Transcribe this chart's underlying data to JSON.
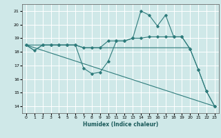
{
  "xlabel": "Humidex (Indice chaleur)",
  "xlim": [
    -0.5,
    23.5
  ],
  "ylim": [
    13.5,
    21.5
  ],
  "yticks": [
    14,
    15,
    16,
    17,
    18,
    19,
    20,
    21
  ],
  "xticks": [
    0,
    1,
    2,
    3,
    4,
    5,
    6,
    7,
    8,
    9,
    10,
    11,
    12,
    13,
    14,
    15,
    16,
    17,
    18,
    19,
    20,
    21,
    22,
    23
  ],
  "bg_color": "#cfe8e8",
  "grid_color": "#ffffff",
  "line_color": "#2e7b7b",
  "lines": [
    {
      "x": [
        0,
        1,
        2,
        3,
        4,
        5,
        6,
        7,
        8,
        9,
        10,
        11,
        12,
        13,
        14,
        15,
        16,
        17,
        18,
        19,
        20
      ],
      "y": [
        18.5,
        18.1,
        18.5,
        18.5,
        18.5,
        18.5,
        18.5,
        18.3,
        18.3,
        18.3,
        18.3,
        18.3,
        18.3,
        18.3,
        18.3,
        18.3,
        18.3,
        18.3,
        18.3,
        18.3,
        18.3
      ],
      "has_markers": false
    },
    {
      "x": [
        0,
        1,
        2,
        3,
        4,
        5,
        6,
        7,
        8,
        9,
        10,
        11,
        12,
        13,
        14,
        15,
        16,
        17,
        18,
        19,
        20,
        21,
        22,
        23
      ],
      "y": [
        18.5,
        18.1,
        18.5,
        18.5,
        18.5,
        18.5,
        18.5,
        16.8,
        16.4,
        16.5,
        17.3,
        18.8,
        18.8,
        19.0,
        19.0,
        19.1,
        19.1,
        19.1,
        19.1,
        19.1,
        18.2,
        16.7,
        15.1,
        14.0
      ],
      "has_markers": true
    },
    {
      "x": [
        0,
        2,
        3,
        4,
        5,
        6,
        7,
        8,
        9,
        10,
        11,
        12,
        13,
        14,
        15,
        16,
        17,
        18,
        19,
        20,
        21,
        22,
        23
      ],
      "y": [
        18.5,
        18.5,
        18.5,
        18.5,
        18.5,
        18.5,
        18.3,
        18.3,
        18.3,
        18.8,
        18.8,
        18.8,
        19.0,
        21.0,
        20.7,
        19.9,
        20.7,
        19.1,
        19.1,
        18.2,
        16.7,
        15.1,
        14.0
      ],
      "has_markers": true
    },
    {
      "x": [
        0,
        23
      ],
      "y": [
        18.5,
        14.0
      ],
      "has_markers": false
    }
  ]
}
